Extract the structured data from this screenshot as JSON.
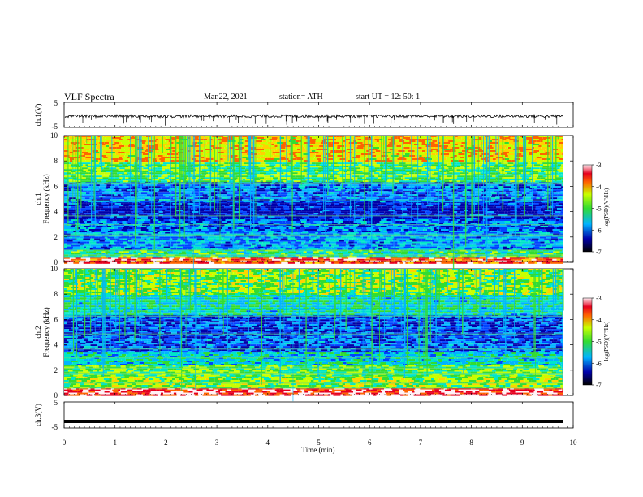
{
  "header": {
    "title": "VLF  Spectra",
    "date": "Mar.22, 2021",
    "station": "station= ATH",
    "start": "start  UT  =    12: 50: 1"
  },
  "colors": {
    "colormap": [
      "#1a0050",
      "#0000aa",
      "#0044ff",
      "#00b4ff",
      "#00e6c8",
      "#32dc32",
      "#c8ff00",
      "#ffd200",
      "#ff6400",
      "#e6001e",
      "#fff0f5"
    ],
    "trace": "#000000",
    "axis": "#000000"
  },
  "chart_data": [
    {
      "type": "line",
      "panel": "ch1-waveform",
      "ylabel": "ch.1(V)",
      "yticks": [
        "5",
        "-5"
      ],
      "ylim": [
        -5,
        5
      ],
      "x_range_min": [
        0,
        9.8
      ],
      "description_values": "noisy trace around ~ -0.5 V with sparse negative spikes"
    },
    {
      "type": "heatmap",
      "panel": "ch1-spectrogram",
      "ylabel": "ch.1\nFrequency  (kHz)",
      "yticks": [
        "0",
        "2",
        "4",
        "6",
        "8",
        "10"
      ],
      "ylim": [
        0,
        10
      ],
      "xlim": [
        0,
        9.8
      ],
      "colorbar": {
        "label": "log(PSD)(V²/Hz)",
        "ticks": [
          "-3",
          "-4",
          "-5",
          "-6",
          "-7"
        ],
        "range": [
          -7,
          -3
        ]
      },
      "bands_khz": [
        {
          "f": [
            0,
            0.4
          ],
          "level": -3.6
        },
        {
          "f": [
            0.4,
            1.0
          ],
          "level": -5.4
        },
        {
          "f": [
            1.0,
            2.4
          ],
          "level": -6.2
        },
        {
          "f": [
            2.4,
            3.4
          ],
          "level": -6.4
        },
        {
          "f": [
            3.4,
            4.8
          ],
          "level": -6.9
        },
        {
          "f": [
            4.8,
            6.4
          ],
          "level": -6.4
        },
        {
          "f": [
            6.4,
            8.0
          ],
          "level": -5.2
        },
        {
          "f": [
            8.0,
            10.0
          ],
          "level": -4.4
        }
      ]
    },
    {
      "type": "heatmap",
      "panel": "ch2-spectrogram",
      "ylabel": "ch.2\nFrequency  (kHz)",
      "yticks": [
        "0",
        "2",
        "4",
        "6",
        "8",
        "10"
      ],
      "ylim": [
        0,
        10
      ],
      "xlim": [
        0,
        9.8
      ],
      "colorbar": {
        "label": "log(PSD)(V²/Hz)",
        "ticks": [
          "-3",
          "-4",
          "-5",
          "-6",
          "-7"
        ],
        "range": [
          -7,
          -3
        ]
      },
      "bands_khz": [
        {
          "f": [
            0,
            0.6
          ],
          "level": -3.4
        },
        {
          "f": [
            0.6,
            1.6
          ],
          "level": -5.0
        },
        {
          "f": [
            1.6,
            2.4
          ],
          "level": -5.2
        },
        {
          "f": [
            2.4,
            3.4
          ],
          "level": -5.8
        },
        {
          "f": [
            3.4,
            4.8
          ],
          "level": -6.5
        },
        {
          "f": [
            4.8,
            6.4
          ],
          "level": -6.6
        },
        {
          "f": [
            6.4,
            8.0
          ],
          "level": -5.7
        },
        {
          "f": [
            8.0,
            10.0
          ],
          "level": -5.0
        }
      ]
    },
    {
      "type": "line",
      "panel": "ch3-waveform",
      "ylabel": "ch.3(V)",
      "yticks": [
        "5",
        "-5"
      ],
      "ylim": [
        -5,
        5
      ],
      "value_v": -2.5,
      "xlabel": "Time  (min)",
      "xticks": [
        "0",
        "1",
        "2",
        "3",
        "4",
        "5",
        "6",
        "7",
        "8",
        "9",
        "10"
      ],
      "xlim": [
        0,
        10
      ]
    }
  ]
}
